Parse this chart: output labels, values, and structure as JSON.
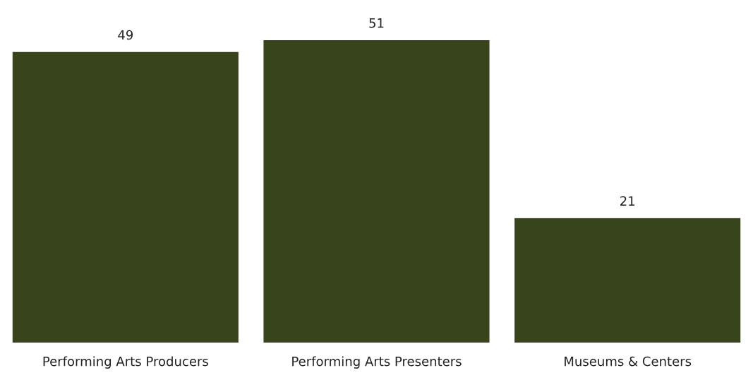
{
  "chart_data": {
    "type": "bar",
    "categories": [
      "Performing Arts Producers",
      "Performing Arts Presenters",
      "Museums & Centers"
    ],
    "values": [
      49,
      51,
      21
    ],
    "color": "#38451c",
    "data_labels": true,
    "grid": false,
    "legend": false
  }
}
